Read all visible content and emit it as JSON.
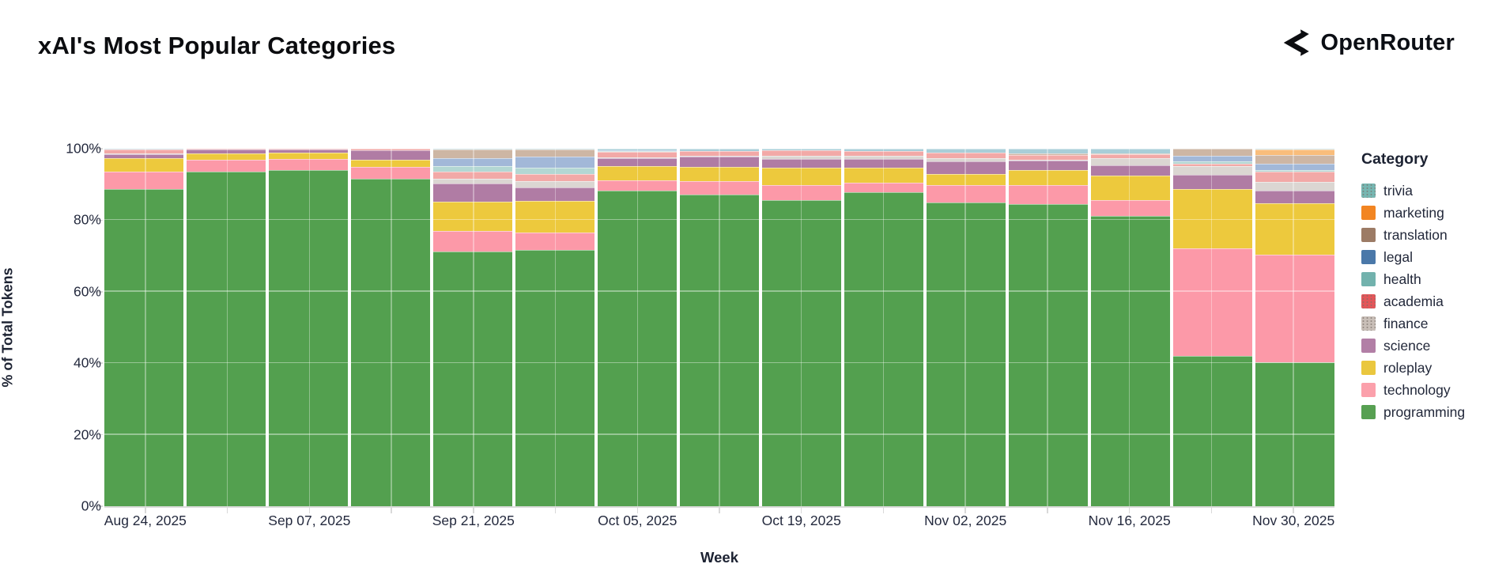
{
  "header": {
    "title": "xAI's Most Popular Categories",
    "logo_text": "OpenRouter"
  },
  "chart_data": {
    "type": "bar",
    "stacked": true,
    "normalized_percent": true,
    "title": "xAI's Most Popular Categories",
    "xlabel": "Week",
    "ylabel": "% of Total Tokens",
    "ylim": [
      0,
      100
    ],
    "y_ticks": [
      "0%",
      "20%",
      "40%",
      "60%",
      "80%",
      "100%"
    ],
    "x_tick_labels": [
      "Aug 24, 2025",
      "Sep 07, 2025",
      "Sep 21, 2025",
      "Oct 05, 2025",
      "Oct 19, 2025",
      "Nov 02, 2025",
      "Nov 16, 2025",
      "Nov 30, 2025"
    ],
    "categories": [
      "Aug 24, 2025",
      "Aug 31, 2025",
      "Sep 07, 2025",
      "Sep 14, 2025",
      "Sep 21, 2025",
      "Sep 28, 2025",
      "Oct 05, 2025",
      "Oct 12, 2025",
      "Oct 19, 2025",
      "Oct 26, 2025",
      "Nov 02, 2025",
      "Nov 09, 2025",
      "Nov 16, 2025",
      "Nov 23, 2025",
      "Nov 30, 2025"
    ],
    "legend_title": "Category",
    "legend_position": "right",
    "stack_order_bottom_to_top": [
      "programming",
      "technology",
      "roleplay",
      "science",
      "finance",
      "academia",
      "health",
      "legal",
      "translation",
      "marketing",
      "trivia"
    ],
    "series": [
      {
        "name": "trivia",
        "legend_color": "#76b7b2",
        "bar_color": "#a9ced8",
        "dotted": true,
        "values": [
          0.2,
          0,
          0,
          0,
          0.3,
          0.3,
          0.5,
          0.7,
          0.4,
          0.6,
          1.2,
          1.4,
          1.3,
          0,
          0.2
        ]
      },
      {
        "name": "marketing",
        "legend_color": "#f28522",
        "bar_color": "#f9bd7b",
        "dotted": false,
        "values": [
          0,
          0,
          0,
          0,
          0,
          0,
          0,
          0,
          0,
          0,
          0,
          0,
          0,
          0,
          1.6
        ]
      },
      {
        "name": "translation",
        "legend_color": "#9c7b65",
        "bar_color": "#cdb6a4",
        "dotted": false,
        "values": [
          0,
          0,
          0,
          0,
          2.3,
          1.9,
          0,
          0,
          0,
          0,
          0,
          0.3,
          0.3,
          2.0,
          2.3
        ]
      },
      {
        "name": "legal",
        "legend_color": "#4a78a9",
        "bar_color": "#a2b8d8",
        "dotted": false,
        "values": [
          0,
          0,
          0,
          0,
          2.3,
          3.0,
          0.2,
          0,
          0,
          0,
          0,
          0,
          0,
          1.6,
          1.9
        ]
      },
      {
        "name": "health",
        "legend_color": "#72b2ad",
        "bar_color": "#b3d7d3",
        "dotted": false,
        "values": [
          0,
          0,
          0,
          0,
          1.6,
          1.9,
          0.2,
          0,
          0,
          0,
          0,
          0,
          0,
          0.6,
          0.5
        ]
      },
      {
        "name": "academia",
        "legend_color": "#e45659",
        "bar_color": "#f2a9a7",
        "dotted": true,
        "values": [
          1.2,
          0.2,
          0.1,
          0.5,
          1.8,
          1.9,
          1.4,
          1.4,
          1.5,
          1.4,
          1.4,
          1.3,
          1.1,
          0.7,
          2.8
        ]
      },
      {
        "name": "finance",
        "legend_color": "#c9bfb8",
        "bar_color": "#dbd6d2",
        "dotted": true,
        "values": [
          0.2,
          0,
          0,
          0,
          1.4,
          1.9,
          0.4,
          0.2,
          0.9,
          0.8,
          0.9,
          0.3,
          1.9,
          2.5,
          2.5
        ]
      },
      {
        "name": "science",
        "legend_color": "#b27fa6",
        "bar_color": "#b07ca4",
        "dotted": false,
        "values": [
          1.1,
          1.0,
          0.8,
          2.7,
          5.2,
          3.8,
          2.1,
          2.7,
          2.5,
          2.4,
          3.6,
          2.7,
          3.0,
          3.9,
          3.5
        ]
      },
      {
        "name": "roleplay",
        "legend_color": "#eac73e",
        "bar_color": "#edc93d",
        "dotted": false,
        "values": [
          3.6,
          1.9,
          1.8,
          1.8,
          8.2,
          8.7,
          4.0,
          4.0,
          4.9,
          4.2,
          3.0,
          4.2,
          6.8,
          16.5,
          14.4
        ]
      },
      {
        "name": "technology",
        "legend_color": "#fba0ab",
        "bar_color": "#fc99a8",
        "dotted": false,
        "values": [
          5.0,
          3.4,
          3.2,
          3.5,
          5.7,
          5.0,
          2.9,
          3.9,
          4.2,
          2.8,
          4.9,
          5.2,
          4.5,
          30.2,
          30.0
        ]
      },
      {
        "name": "programming",
        "legend_color": "#57a052",
        "bar_color": "#53a04f",
        "dotted": false,
        "values": [
          88.7,
          93.5,
          94.1,
          91.5,
          71.2,
          71.6,
          88.3,
          87.1,
          85.6,
          87.8,
          85.0,
          84.6,
          81.1,
          42.0,
          40.3
        ]
      }
    ]
  }
}
